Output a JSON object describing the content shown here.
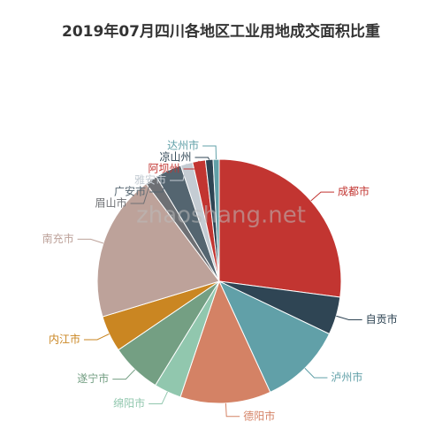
{
  "chart_data": {
    "type": "pie",
    "title": "2019年07月四川各地区工业用地成交面积比重",
    "watermark": "zhaoshang.net",
    "categories": [
      "成都市",
      "自贡市",
      "泸州市",
      "德阳市",
      "绵阳市",
      "遂宁市",
      "内江市",
      "南充市",
      "眉山市",
      "广安市",
      "雅安市",
      "阿坝州",
      "凉山州",
      "达州市"
    ],
    "values": [
      27,
      5,
      11,
      12,
      3.6,
      6.7,
      4.8,
      19.4,
      1.6,
      3.5,
      1.6,
      1.7,
      1,
      0.8
    ],
    "colors": [
      "#c23531",
      "#2f4554",
      "#61a0a8",
      "#d48265",
      "#91c7ae",
      "#749f83",
      "#ca8622",
      "#bda29a",
      "#6e7074",
      "#546570",
      "#c4ccd3",
      "#c23531",
      "#2f4554",
      "#61a0a8"
    ]
  }
}
